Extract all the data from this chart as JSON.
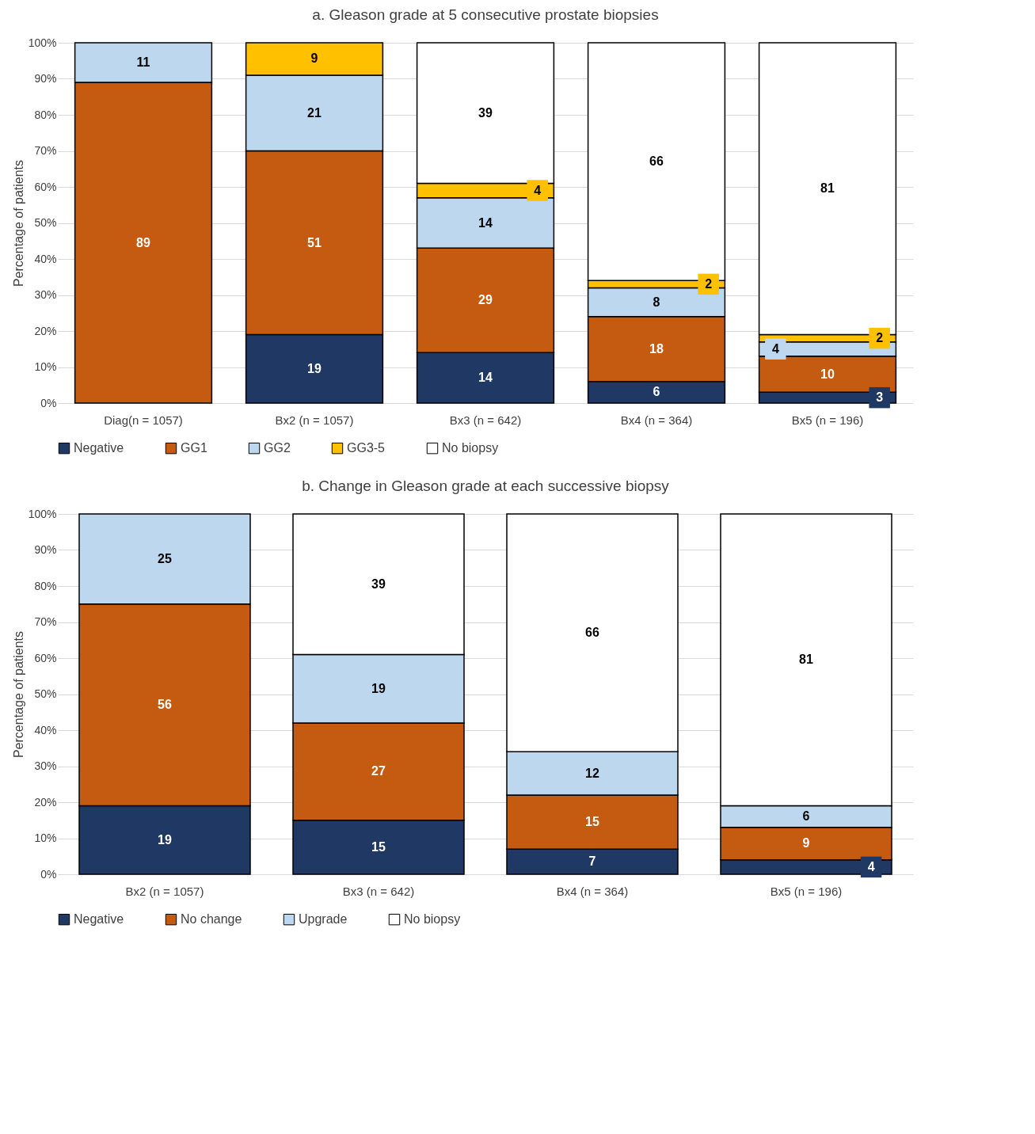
{
  "chart_data": [
    {
      "type": "bar",
      "stacked": true,
      "title": "a. Gleason grade at 5 consecutive prostate biopsies",
      "ylabel": "Percentage of patients",
      "categories": [
        "Diag(n = 1057)",
        "Bx2 (n = 1057)",
        "Bx3 (n = 642)",
        "Bx4 (n = 364)",
        "Bx5 (n = 196)"
      ],
      "series": [
        {
          "name": "Negative",
          "color": "#1f3864",
          "values": [
            null,
            19,
            14,
            6,
            3
          ]
        },
        {
          "name": "GG1",
          "color": "#c55a11",
          "values": [
            89,
            51,
            29,
            18,
            10
          ]
        },
        {
          "name": "GG2",
          "color": "#bdd7ee",
          "values": [
            11,
            21,
            14,
            8,
            4
          ]
        },
        {
          "name": "GG3-5",
          "color": "#ffc000",
          "values": [
            null,
            9,
            4,
            2,
            2
          ]
        },
        {
          "name": "No biopsy",
          "color": "#ffffff",
          "values": [
            null,
            null,
            39,
            66,
            81
          ]
        }
      ],
      "ylim": [
        0,
        100
      ],
      "yticks": [
        {
          "value": 0,
          "label": "0%"
        },
        {
          "value": 10,
          "label": "10%"
        },
        {
          "value": 20,
          "label": "20%"
        },
        {
          "value": 30,
          "label": "30%"
        },
        {
          "value": 40,
          "label": "40%"
        },
        {
          "value": 50,
          "label": "50%"
        },
        {
          "value": 60,
          "label": "60%"
        },
        {
          "value": 70,
          "label": "70%"
        },
        {
          "value": 80,
          "label": "80%"
        },
        {
          "value": 90,
          "label": "90%"
        },
        {
          "value": 100,
          "label": "100%"
        }
      ],
      "grid": "y",
      "legend": "bottom",
      "data_labels": true
    },
    {
      "type": "bar",
      "stacked": true,
      "title": "b. Change in Gleason grade at each successive biopsy",
      "ylabel": "Percentage of patients",
      "categories": [
        "Bx2 (n = 1057)",
        "Bx3 (n = 642)",
        "Bx4 (n = 364)",
        "Bx5 (n = 196)"
      ],
      "series": [
        {
          "name": "Negative",
          "color": "#1f3864",
          "values": [
            19,
            15,
            7,
            4
          ]
        },
        {
          "name": "No change",
          "color": "#c55a11",
          "values": [
            56,
            27,
            15,
            9
          ]
        },
        {
          "name": "Upgrade",
          "color": "#bdd7ee",
          "values": [
            25,
            19,
            12,
            6
          ]
        },
        {
          "name": "No biopsy",
          "color": "#ffffff",
          "values": [
            null,
            39,
            66,
            81
          ]
        }
      ],
      "ylim": [
        0,
        100
      ],
      "yticks": [
        {
          "value": 0,
          "label": "0%"
        },
        {
          "value": 10,
          "label": "10%"
        },
        {
          "value": 20,
          "label": "20%"
        },
        {
          "value": 30,
          "label": "30%"
        },
        {
          "value": 40,
          "label": "40%"
        },
        {
          "value": 50,
          "label": "50%"
        },
        {
          "value": 60,
          "label": "60%"
        },
        {
          "value": 70,
          "label": "70%"
        },
        {
          "value": 80,
          "label": "80%"
        },
        {
          "value": 90,
          "label": "90%"
        },
        {
          "value": 100,
          "label": "100%"
        }
      ],
      "grid": "y",
      "legend": "bottom",
      "data_labels": true
    }
  ]
}
